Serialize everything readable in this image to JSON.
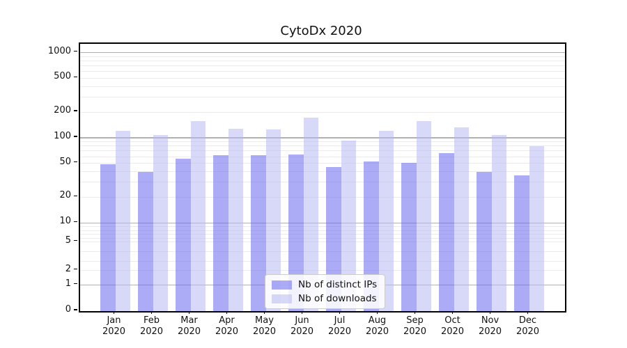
{
  "chart_data": {
    "type": "bar",
    "title": "CytoDx 2020",
    "categories": [
      "Jan 2020",
      "Feb 2020",
      "Mar 2020",
      "Apr 2020",
      "May 2020",
      "Jun 2020",
      "Jul 2020",
      "Aug 2020",
      "Sep 2020",
      "Oct 2020",
      "Nov 2020",
      "Dec 2020"
    ],
    "series": [
      {
        "name": "Nb of distinct IPs",
        "color": "#6666ee",
        "values": [
          49,
          40,
          57,
          62,
          62,
          64,
          45,
          53,
          51,
          66,
          40,
          36
        ]
      },
      {
        "name": "Nb of downloads",
        "color": "#b8b8f2",
        "values": [
          120,
          108,
          157,
          128,
          125,
          173,
          93,
          121,
          158,
          132,
          108,
          80
        ]
      }
    ],
    "xlabel": "",
    "ylabel": "",
    "yscale": "symlog",
    "y_ticks": [
      0,
      1,
      2,
      5,
      10,
      20,
      50,
      100,
      200,
      500,
      1000
    ],
    "ylim": [
      0,
      1265
    ],
    "grid": "on",
    "legend_position": "lower-center"
  },
  "colors": {
    "bar_distinct_ips": "#6666ee",
    "bar_downloads": "#b8b8f2",
    "bar_opacity": 0.55,
    "major_grid": "#b0b0b0",
    "minor_grid": "#ebebeb",
    "axis": "#000000",
    "background": "#ffffff"
  }
}
